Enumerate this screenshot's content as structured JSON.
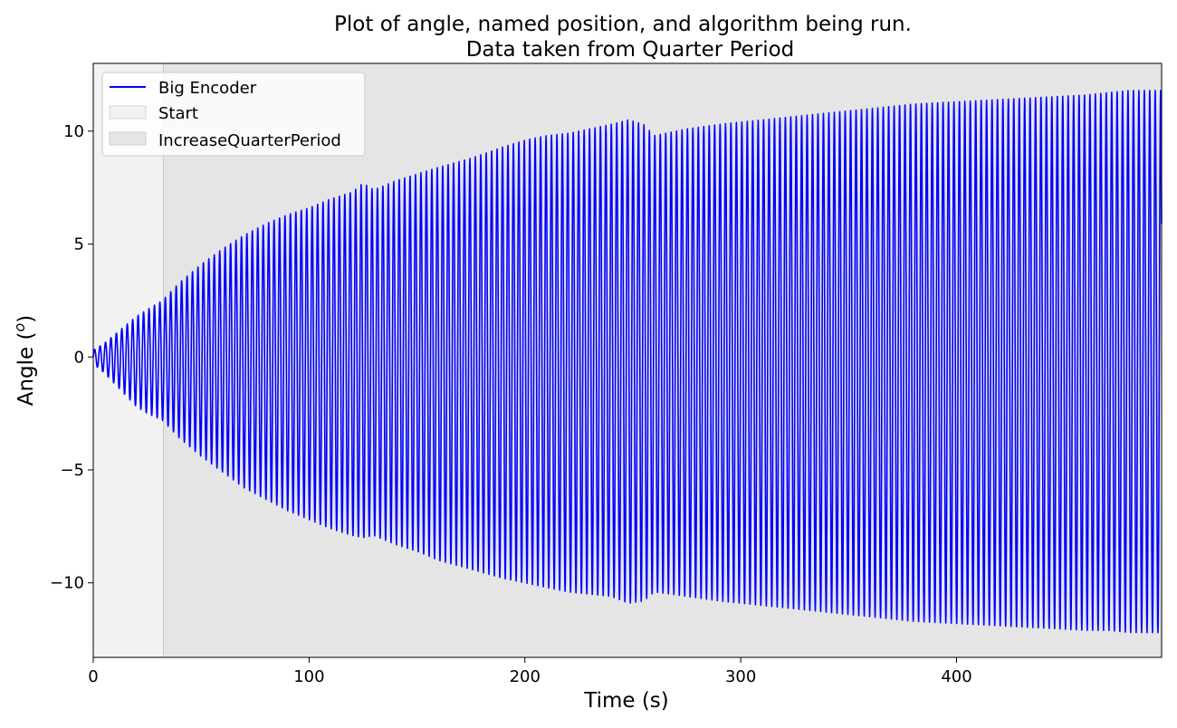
{
  "chart_data": {
    "type": "line",
    "title": "Plot of angle, named position, and algorithm being run.",
    "subtitle": "Data taken from Quarter Period",
    "xlabel": "Time (s)",
    "ylabel": "Angle (",
    "ylabel_sup": "o",
    "ylabel_close": ")",
    "xlim": [
      0,
      495
    ],
    "ylim": [
      -13.3,
      13.0
    ],
    "x_ticks": [
      0,
      100,
      200,
      300,
      400
    ],
    "x_tick_labels": [
      "0",
      "100",
      "200",
      "300",
      "400"
    ],
    "y_ticks": [
      10,
      5,
      0,
      -5,
      -10
    ],
    "y_tick_labels": [
      "10",
      "5",
      "0",
      "−5",
      "−10"
    ],
    "grid": false,
    "legend_position": "top-left",
    "legend": [
      {
        "label": "Big Encoder",
        "kind": "line",
        "color": "#0000ff"
      },
      {
        "label": "Start",
        "kind": "patch",
        "color": "#f2f2f2"
      },
      {
        "label": "IncreaseQuarterPeriod",
        "kind": "patch",
        "color": "#e5e5e5"
      }
    ],
    "regions": [
      {
        "name": "Start",
        "x_start": 0,
        "x_end": 32.5,
        "color": "#f2f2f2"
      },
      {
        "name": "IncreaseQuarterPeriod",
        "x_start": 32.5,
        "x_end": 495,
        "color": "#e5e5e5"
      }
    ],
    "series": [
      {
        "name": "Big Encoder",
        "color": "#0000ff",
        "oscillation_period": 2.52,
        "envelope_time": [
          0,
          5,
          10,
          15,
          20,
          25,
          32,
          40,
          50,
          60,
          70,
          80,
          90,
          100,
          110,
          120,
          125,
          130,
          140,
          150,
          160,
          175,
          190,
          200,
          210,
          220,
          240,
          248,
          255,
          260,
          275,
          290,
          300,
          320,
          340,
          360,
          380,
          400,
          420,
          440,
          460,
          470,
          480,
          495
        ],
        "envelope_max": [
          0.3,
          0.6,
          1.0,
          1.4,
          1.8,
          2.1,
          2.5,
          3.3,
          4.1,
          4.8,
          5.4,
          5.9,
          6.3,
          6.6,
          7.0,
          7.3,
          7.7,
          7.4,
          7.8,
          8.1,
          8.4,
          8.8,
          9.3,
          9.6,
          9.8,
          9.9,
          10.3,
          10.5,
          10.3,
          9.8,
          10.1,
          10.3,
          10.4,
          10.6,
          10.8,
          11.0,
          11.2,
          11.3,
          11.4,
          11.5,
          11.6,
          11.7,
          11.8,
          11.8
        ],
        "envelope_min": [
          -0.3,
          -0.7,
          -1.2,
          -1.7,
          -2.2,
          -2.5,
          -2.8,
          -3.6,
          -4.4,
          -5.1,
          -5.8,
          -6.3,
          -6.8,
          -7.2,
          -7.6,
          -7.9,
          -8.0,
          -7.9,
          -8.3,
          -8.6,
          -9.0,
          -9.4,
          -9.8,
          -10.0,
          -10.2,
          -10.4,
          -10.6,
          -10.9,
          -10.8,
          -10.4,
          -10.6,
          -10.8,
          -10.9,
          -11.1,
          -11.3,
          -11.5,
          -11.7,
          -11.8,
          -11.9,
          -12.0,
          -12.1,
          -12.1,
          -12.2,
          -12.2
        ]
      }
    ]
  }
}
